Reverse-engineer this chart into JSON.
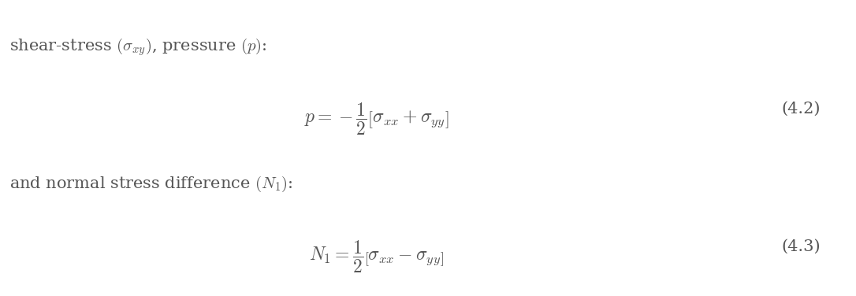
{
  "background_color": "#ffffff",
  "text1": "shear-stress $(\\sigma_{xy})$, pressure $(p)$:",
  "eq1_label": "$p = -\\dfrac{1}{2}\\left[\\sigma_{xx} + \\sigma_{yy}\\right]$",
  "eq1_number": "(4.2)",
  "text2": "and normal stress difference $(N_1)$:",
  "eq2_label": "$N_1 = \\dfrac{1}{2}\\left[\\sigma_{xx} - \\sigma_{yy}\\right]$",
  "eq2_number": "(4.3)",
  "text_color": "#555555",
  "eq_color": "#555555",
  "fontsize_text": 15,
  "fontsize_eq": 17,
  "fontsize_num": 15
}
